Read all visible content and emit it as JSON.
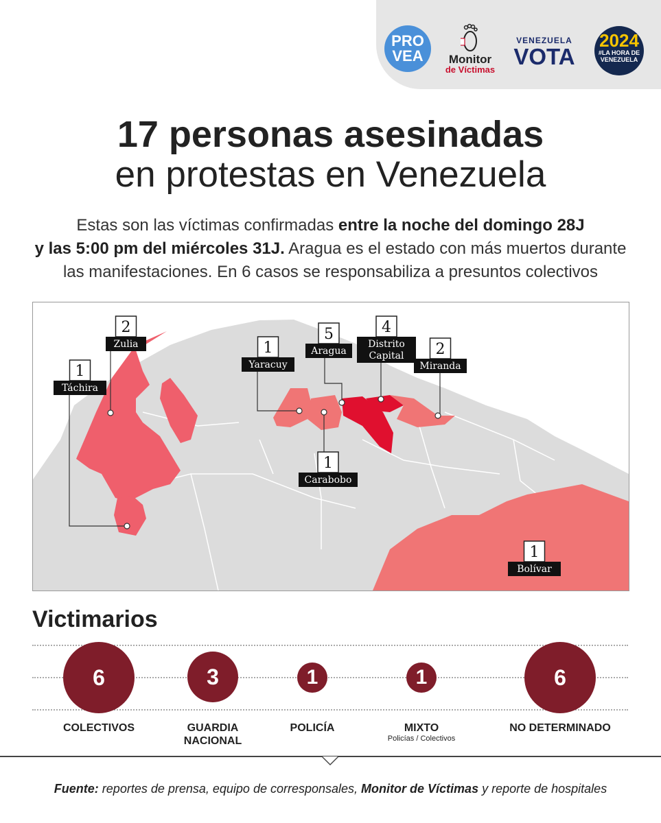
{
  "logos": {
    "provea": [
      "PRO",
      "VEA"
    ],
    "monitor": [
      "Monitor",
      "de Víctimas"
    ],
    "venezuela_vota": [
      "VENEZUELA",
      "VOTA"
    ],
    "hora": [
      "2024",
      "#LA HORA DE",
      "VENEZUELA"
    ]
  },
  "headline": {
    "line1": "17 personas asesinadas",
    "line2": "en protestas en Venezuela"
  },
  "intro": {
    "p1": "Estas son las víctimas confirmadas ",
    "b1": "entre la noche del domingo 28J",
    "b2": "y las 5:00 pm del miércoles 31J.",
    "p2": " Aragua es el estado con más muertos durante",
    "p3": "las manifestaciones. En 6 casos se responsabiliza a presuntos colectivos"
  },
  "map": {
    "colors": {
      "base": "#dcdcdc",
      "low": "#f07575",
      "mid": "#ef5f6c",
      "high": "#e0102f",
      "label_bg": "#111111"
    },
    "states": [
      {
        "name": "Zulia",
        "count": "2"
      },
      {
        "name": "Táchira",
        "count": "1"
      },
      {
        "name": "Yaracuy",
        "count": "1"
      },
      {
        "name": "Aragua",
        "count": "5"
      },
      {
        "name": "Distrito Capital",
        "label_lines": [
          "Distrito",
          "Capital"
        ],
        "count": "4"
      },
      {
        "name": "Miranda",
        "count": "2"
      },
      {
        "name": "Carabobo",
        "count": "1"
      },
      {
        "name": "Bolívar",
        "count": "1"
      }
    ]
  },
  "victimarios": {
    "title": "Victimarios",
    "color": "#7f1d2a",
    "items": [
      {
        "count": 6,
        "label": "COLECTIVOS",
        "sub": ""
      },
      {
        "count": 3,
        "label_lines": [
          "GUARDIA",
          "NACIONAL"
        ],
        "sub": ""
      },
      {
        "count": 1,
        "label": "POLICÍA",
        "sub": ""
      },
      {
        "count": 1,
        "label": "MIXTO",
        "sub": "Policías / Colectivos"
      },
      {
        "count": 6,
        "label": "NO DETERMINADO",
        "sub": ""
      }
    ]
  },
  "source": {
    "label": "Fuente:",
    "t1": " reportes de prensa, equipo de corresponsales, ",
    "bold": "Monitor de Víctimas",
    "t2": " y reporte de hospitales"
  }
}
